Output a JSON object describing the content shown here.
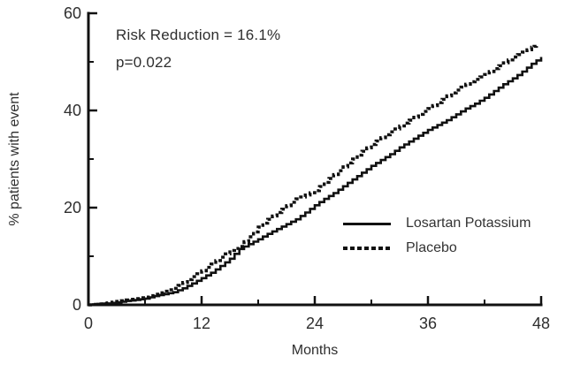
{
  "annotation": {
    "risk_reduction": "Risk Reduction = 16.1%",
    "p_value": "p=0.022"
  },
  "legend": {
    "items": [
      {
        "label": "Losartan Potassium",
        "line_style": "solid"
      },
      {
        "label": "Placebo",
        "line_style": "dotted"
      }
    ]
  },
  "colors": {
    "axis": "#111111",
    "curves": "#111111",
    "text": "#2e2e2e"
  },
  "chart_data": {
    "type": "line",
    "subtype": "kaplan-meier-cumulative-incidence",
    "title": "",
    "xlabel": "Months",
    "ylabel": "% patients with event",
    "xlim": [
      0,
      48
    ],
    "ylim": [
      0,
      60
    ],
    "x_major_ticks": [
      0,
      12,
      24,
      36,
      48
    ],
    "x_minor_ticks": [
      6,
      18,
      30,
      42
    ],
    "y_major_ticks": [
      0,
      20,
      40,
      60
    ],
    "y_minor_ticks": [
      10,
      30,
      50
    ],
    "grid": false,
    "legend_position": "inside-lower-right",
    "annotations": [
      "Risk Reduction = 16.1%",
      "p=0.022"
    ],
    "series": [
      {
        "name": "Losartan Potassium",
        "line": "solid",
        "x": [
          0,
          1,
          2,
          3,
          4,
          5,
          6,
          7,
          8,
          9,
          10,
          11,
          12,
          13,
          14,
          15,
          16,
          17,
          18,
          19,
          20,
          21,
          22,
          23,
          24,
          25,
          26,
          27,
          28,
          29,
          30,
          31,
          32,
          33,
          34,
          35,
          36,
          37,
          38,
          39,
          40,
          41,
          42,
          43,
          44,
          45,
          46,
          47,
          48
        ],
        "y": [
          0,
          0.2,
          0.3,
          0.5,
          0.8,
          1,
          1.3,
          1.8,
          2.2,
          2.6,
          3.4,
          4.4,
          5.5,
          6.6,
          8,
          9.5,
          11.5,
          12.5,
          13.5,
          14.6,
          15.6,
          16.6,
          17.6,
          19,
          20.5,
          21.8,
          23,
          24.4,
          25.8,
          27.2,
          28.6,
          29.8,
          31,
          32.4,
          33.6,
          34.8,
          36,
          37,
          38,
          39.2,
          40.4,
          41.4,
          42.6,
          44,
          45.4,
          46.6,
          48,
          49.6,
          51
        ]
      },
      {
        "name": "Placebo",
        "line": "dotted",
        "x": [
          0,
          1,
          2,
          3,
          4,
          5,
          6,
          7,
          8,
          9,
          10,
          11,
          12,
          13,
          14,
          15,
          16,
          17,
          18,
          19,
          20,
          21,
          22,
          23,
          24,
          25,
          26,
          27,
          28,
          29,
          30,
          31,
          32,
          33,
          34,
          35,
          36,
          37,
          38,
          39,
          40,
          41,
          42,
          43,
          44,
          45,
          46,
          47,
          47.5
        ],
        "y": [
          0,
          0.2,
          0.4,
          0.7,
          1,
          1.3,
          1.6,
          2.2,
          2.8,
          3.4,
          4.6,
          5.8,
          7,
          8.4,
          9.8,
          11.2,
          12,
          14,
          16,
          17.6,
          19,
          20.4,
          21.8,
          22.6,
          23.5,
          25.2,
          26.8,
          28.4,
          30,
          31.6,
          33,
          34.4,
          35.6,
          36.8,
          38,
          39.2,
          40.4,
          41.6,
          43,
          44.2,
          45.4,
          46.4,
          47.4,
          48.6,
          49.8,
          51,
          52,
          53,
          53.4
        ]
      }
    ]
  }
}
